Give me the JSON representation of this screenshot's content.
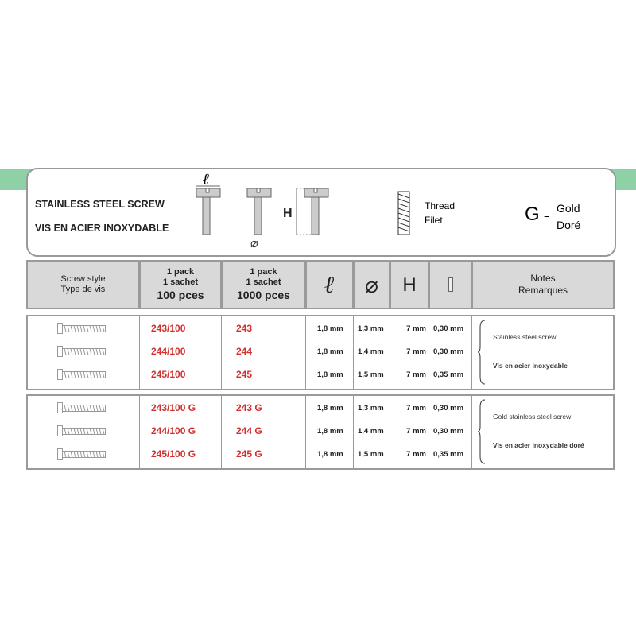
{
  "header": {
    "title_en": "STAINLESS STEEL SCREW",
    "title_fr": "VIS EN ACIER INOXYDABLE",
    "thread_en": "Thread",
    "thread_fr": "Filet",
    "g_letter": "G",
    "g_eq": "=",
    "gold_en": "Gold",
    "gold_fr": "Doré",
    "sym_l": "ℓ",
    "sym_d": "⌀",
    "sym_h": "H"
  },
  "columns": {
    "style_en": "Screw style",
    "style_fr": "Type de vis",
    "pack1_a": "1 pack",
    "pack1_b": "1 sachet",
    "pack1_c": "100 pces",
    "pack2_a": "1 pack",
    "pack2_b": "1 sachet",
    "pack2_c": "1000 pces",
    "l": "ℓ",
    "d": "⌀",
    "h": "H",
    "notes_en": "Notes",
    "notes_fr": "Remarques"
  },
  "groups": [
    {
      "note_en": "Stainless steel screw",
      "note_fr": "Vis en acier inoxydable",
      "rows": [
        {
          "ref100": "243/100",
          "ref1000": "243",
          "l": "1,8 mm",
          "d": "1,3 mm",
          "h": "7 mm",
          "t": "0,30 mm"
        },
        {
          "ref100": "244/100",
          "ref1000": "244",
          "l": "1,8 mm",
          "d": "1,4 mm",
          "h": "7 mm",
          "t": "0,30 mm"
        },
        {
          "ref100": "245/100",
          "ref1000": "245",
          "l": "1,8 mm",
          "d": "1,5 mm",
          "h": "7 mm",
          "t": "0,35 mm"
        }
      ]
    },
    {
      "note_en": "Gold stainless steel screw",
      "note_fr": "Vis en acier inoxydable doré",
      "rows": [
        {
          "ref100": "243/100 G",
          "ref1000": "243 G",
          "l": "1,8 mm",
          "d": "1,3 mm",
          "h": "7 mm",
          "t": "0,30 mm"
        },
        {
          "ref100": "244/100 G",
          "ref1000": "244 G",
          "l": "1,8 mm",
          "d": "1,4 mm",
          "h": "7 mm",
          "t": "0,30 mm"
        },
        {
          "ref100": "245/100 G",
          "ref1000": "245 G",
          "l": "1,8 mm",
          "d": "1,5 mm",
          "h": "7 mm",
          "t": "0,35 mm"
        }
      ]
    }
  ],
  "colors": {
    "band": "#8fd1a7",
    "ref": "#d22f2f",
    "header_bg": "#d9d9d9"
  }
}
